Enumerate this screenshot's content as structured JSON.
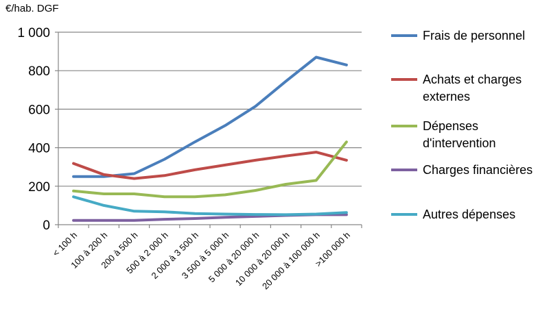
{
  "chart_data": {
    "type": "line",
    "title": "",
    "ylabel": "€/hab. DGF",
    "xlabel": "",
    "categories": [
      "< 100 h",
      "100 à 200 h",
      "200 à 500 h",
      "500 à 2 000 h",
      "2 000 à 3 500 h",
      "3 500 à 5 000 h",
      "5 000 à 20 000 h",
      "10 000 à 20 000 h",
      "20 000 à 100 000 h",
      ">100 000 h"
    ],
    "ylim": [
      0,
      1000
    ],
    "yticks": [
      0,
      200,
      400,
      600,
      800,
      1000
    ],
    "ytick_labels": [
      "0",
      "200",
      "400",
      "600",
      "800",
      "1 000"
    ],
    "grid": true,
    "legend_position": "right",
    "series": [
      {
        "name": "Frais de personnel",
        "color": "#4a7ebb",
        "values": [
          250,
          250,
          265,
          340,
          430,
          515,
          615,
          745,
          870,
          830
        ]
      },
      {
        "name": "Achats et charges externes",
        "color": "#be4b48",
        "values": [
          318,
          260,
          240,
          255,
          285,
          310,
          335,
          357,
          377,
          335
        ]
      },
      {
        "name": "Dépenses d'intervention",
        "color": "#98b954",
        "values": [
          175,
          160,
          160,
          145,
          145,
          155,
          178,
          210,
          230,
          430
        ]
      },
      {
        "name": "Charges financières",
        "color": "#7d60a0",
        "values": [
          22,
          22,
          22,
          28,
          32,
          38,
          43,
          48,
          52,
          52
        ]
      },
      {
        "name": "Autres dépenses",
        "color": "#46aac5",
        "values": [
          145,
          100,
          70,
          67,
          58,
          55,
          53,
          52,
          55,
          63
        ]
      }
    ]
  }
}
